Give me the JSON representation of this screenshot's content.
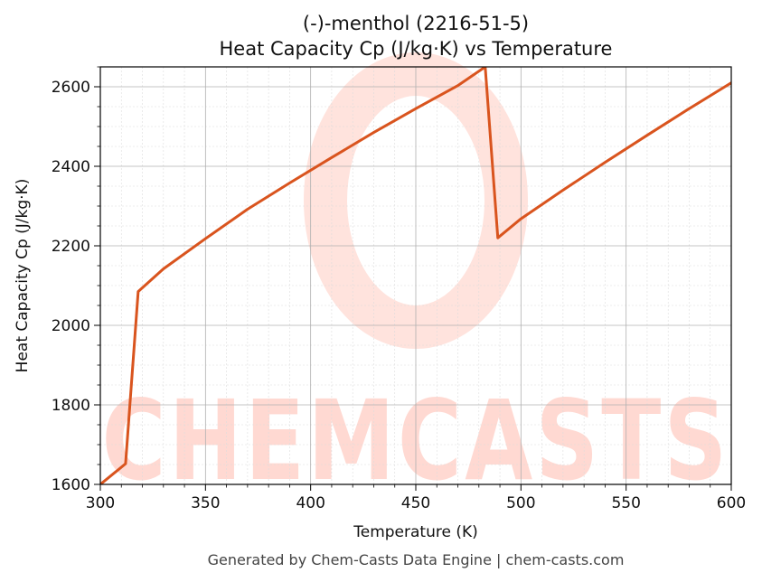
{
  "chart_data": {
    "type": "line",
    "title": "(-)-menthol (2216-51-5)",
    "subtitle": "Heat Capacity Cp (J/kg·K) vs Temperature",
    "xlabel": "Temperature (K)",
    "ylabel": "Heat Capacity Cp (J/kg·K)",
    "xlim": [
      300,
      600
    ],
    "ylim": [
      1600,
      2650
    ],
    "xticks": [
      300,
      350,
      400,
      450,
      500,
      550,
      600
    ],
    "yticks": [
      1600,
      1800,
      2000,
      2200,
      2400,
      2600
    ],
    "grid": true,
    "legend": "none",
    "series": [
      {
        "color": "#d9541e",
        "x": [
          300,
          312,
          318,
          330,
          350,
          370,
          390,
          410,
          430,
          450,
          470,
          483,
          489,
          500,
          520,
          540,
          560,
          580,
          600
        ],
        "y": [
          1600,
          1652,
          2085,
          2142,
          2218,
          2292,
          2358,
          2422,
          2485,
          2545,
          2603,
          2650,
          2220,
          2268,
          2340,
          2410,
          2478,
          2545,
          2610
        ]
      }
    ]
  },
  "watermark": {
    "text": "CHEMCASTS",
    "color": "#ffd9d2"
  },
  "footer": {
    "text": "Generated by Chem-Casts Data Engine | chem-casts.com"
  }
}
